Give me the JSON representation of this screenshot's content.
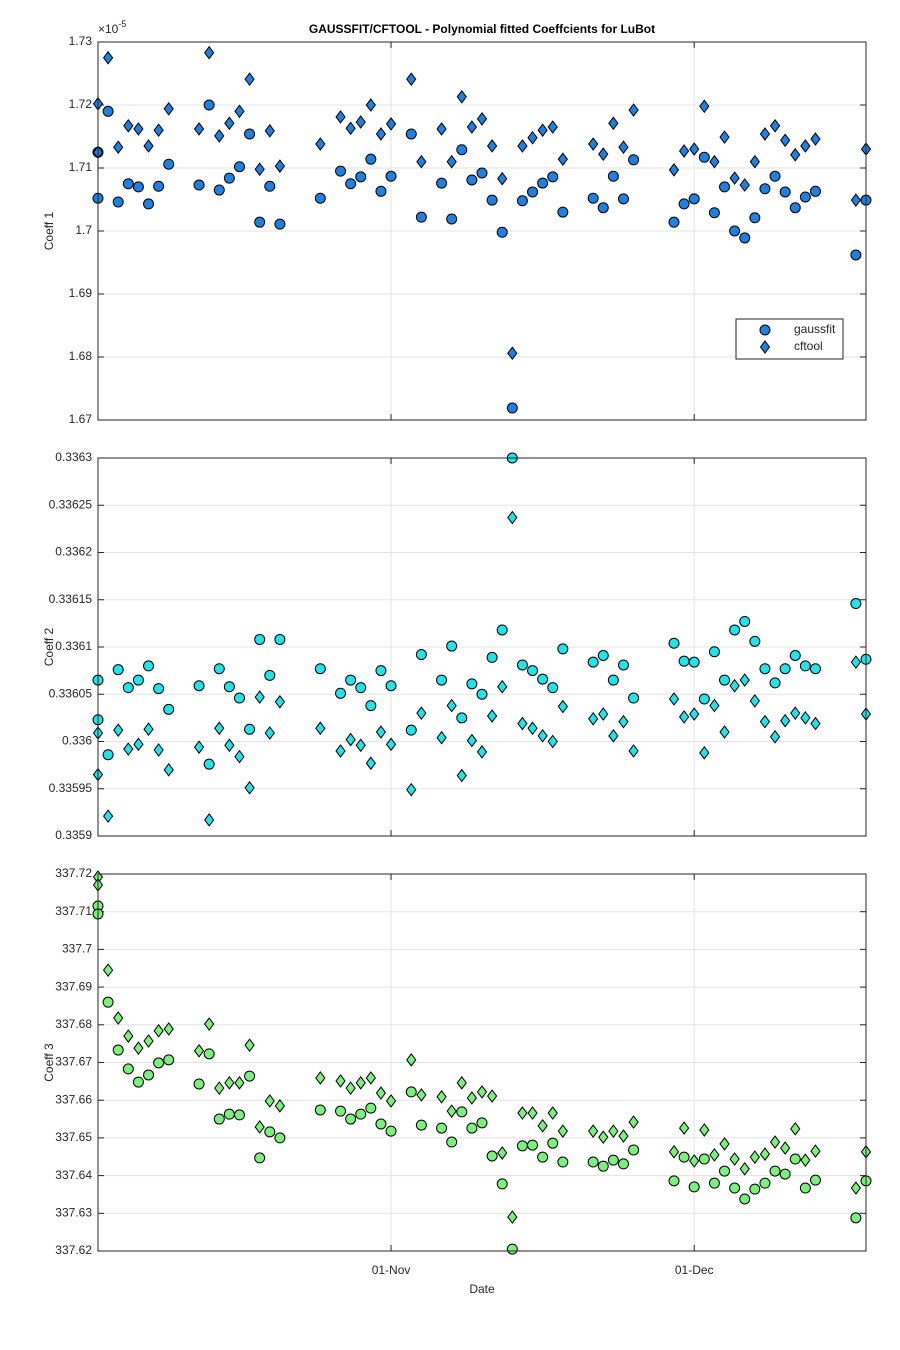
{
  "chart_data": [
    {
      "type": "scatter",
      "title": "GAUSSFIT/CFTOOL - Polynomial fitted Coeffcients for LuBot",
      "ylabel": "Coeff 1",
      "y_multiplier": {
        "base": "×10",
        "exponent": "-5"
      },
      "x": [
        "03-Oct",
        "03-Oct",
        "04-Oct",
        "05-Oct",
        "06-Oct",
        "07-Oct",
        "08-Oct",
        "09-Oct",
        "10-Oct",
        "13-Oct",
        "14-Oct",
        "15-Oct",
        "16-Oct",
        "17-Oct",
        "18-Oct",
        "19-Oct",
        "20-Oct",
        "21-Oct",
        "25-Oct",
        "27-Oct",
        "28-Oct",
        "29-Oct",
        "30-Oct",
        "31-Oct",
        "01-Nov",
        "03-Nov",
        "04-Nov",
        "06-Nov",
        "07-Nov",
        "08-Nov",
        "09-Nov",
        "10-Nov",
        "11-Nov",
        "12-Nov",
        "13-Nov",
        "14-Nov",
        "15-Nov",
        "16-Nov",
        "17-Nov",
        "18-Nov",
        "21-Nov",
        "22-Nov",
        "23-Nov",
        "24-Nov",
        "25-Nov",
        "29-Nov",
        "30-Nov",
        "01-Dec",
        "02-Dec",
        "03-Dec",
        "04-Dec",
        "05-Dec",
        "06-Dec",
        "07-Dec",
        "08-Dec",
        "09-Dec",
        "10-Dec",
        "11-Dec",
        "12-Dec",
        "13-Dec",
        "17-Dec",
        "18-Dec"
      ],
      "xlim": [
        "03-Oct",
        "18-Dec"
      ],
      "xticks": [
        "01-Nov",
        "01-Dec"
      ],
      "xticklabels": false,
      "ylim": [
        1.67,
        1.73
      ],
      "yticks": [
        1.67,
        1.68,
        1.69,
        1.7,
        1.71,
        1.72,
        1.73
      ],
      "grid": true,
      "legend": "east",
      "series": [
        {
          "name": "gaussfit",
          "marker": "o",
          "color": "#1f80e0",
          "values": [
            1.7052,
            1.7125,
            1.719,
            1.7046,
            1.7075,
            1.707,
            1.7043,
            1.7071,
            1.7106,
            1.7073,
            1.72,
            1.7065,
            1.7084,
            1.7102,
            1.7154,
            1.7014,
            1.7071,
            1.7011,
            1.7052,
            1.7095,
            1.7075,
            1.7086,
            1.7114,
            1.7063,
            1.7087,
            1.7154,
            1.7022,
            1.7076,
            1.7019,
            1.7129,
            1.7081,
            1.7092,
            1.7049,
            1.6998,
            1.6719,
            1.7048,
            1.7062,
            1.7076,
            1.7086,
            1.703,
            1.7052,
            1.7037,
            1.7087,
            1.7051,
            1.7113,
            1.7014,
            1.7043,
            1.7051,
            1.7117,
            1.7029,
            1.707,
            1.7,
            1.6989,
            1.7021,
            1.7067,
            1.7087,
            1.7062,
            1.7037,
            1.7054,
            1.7063,
            1.6962,
            1.7049
          ]
        },
        {
          "name": "cftool",
          "marker": "d",
          "color": "#1f80e0",
          "values": [
            1.7202,
            1.7125,
            1.7275,
            1.7133,
            1.7167,
            1.7162,
            1.7135,
            1.716,
            1.7194,
            1.7162,
            1.7283,
            1.7151,
            1.7171,
            1.719,
            1.7241,
            1.7098,
            1.7159,
            1.7103,
            1.7138,
            1.7181,
            1.7163,
            1.7173,
            1.72,
            1.7154,
            1.717,
            1.7241,
            1.711,
            1.7162,
            1.711,
            1.7213,
            1.7165,
            1.7178,
            1.7135,
            1.7083,
            1.6806,
            1.7135,
            1.7148,
            1.716,
            1.7165,
            1.7114,
            1.7138,
            1.7122,
            1.7171,
            1.7133,
            1.7192,
            1.7097,
            1.7127,
            1.713,
            1.7198,
            1.711,
            1.7149,
            1.7084,
            1.7073,
            1.711,
            1.7154,
            1.7167,
            1.7144,
            1.7121,
            1.7135,
            1.7146,
            1.7049,
            1.713
          ]
        }
      ]
    },
    {
      "type": "scatter",
      "ylabel": "Coeff 2",
      "x": [
        "03-Oct",
        "03-Oct",
        "04-Oct",
        "05-Oct",
        "06-Oct",
        "07-Oct",
        "08-Oct",
        "09-Oct",
        "10-Oct",
        "13-Oct",
        "14-Oct",
        "15-Oct",
        "16-Oct",
        "17-Oct",
        "18-Oct",
        "19-Oct",
        "20-Oct",
        "21-Oct",
        "25-Oct",
        "27-Oct",
        "28-Oct",
        "29-Oct",
        "30-Oct",
        "31-Oct",
        "01-Nov",
        "03-Nov",
        "04-Nov",
        "06-Nov",
        "07-Nov",
        "08-Nov",
        "09-Nov",
        "10-Nov",
        "11-Nov",
        "12-Nov",
        "13-Nov",
        "14-Nov",
        "15-Nov",
        "16-Nov",
        "17-Nov",
        "18-Nov",
        "21-Nov",
        "22-Nov",
        "23-Nov",
        "24-Nov",
        "25-Nov",
        "29-Nov",
        "30-Nov",
        "01-Dec",
        "02-Dec",
        "03-Dec",
        "04-Dec",
        "05-Dec",
        "06-Dec",
        "07-Dec",
        "08-Dec",
        "09-Dec",
        "10-Dec",
        "11-Dec",
        "12-Dec",
        "13-Dec",
        "17-Dec",
        "18-Dec"
      ],
      "xlim": [
        "03-Oct",
        "18-Dec"
      ],
      "xticks": [
        "01-Nov",
        "01-Dec"
      ],
      "xticklabels": false,
      "ylim": [
        0.3359,
        0.3363
      ],
      "yticks": [
        0.3359,
        0.33595,
        0.336,
        0.33605,
        0.3361,
        0.33615,
        0.3362,
        0.33625,
        0.3363
      ],
      "grid": true,
      "series": [
        {
          "name": "gaussfit",
          "marker": "o",
          "color": "#22e4e8",
          "values": [
            0.336065,
            0.336023,
            0.335986,
            0.336076,
            0.336057,
            0.336065,
            0.33608,
            0.336056,
            0.336034,
            0.336059,
            0.335976,
            0.336077,
            0.336058,
            0.336046,
            0.336013,
            0.336108,
            0.33607,
            0.336108,
            0.336077,
            0.336051,
            0.336065,
            0.336057,
            0.336038,
            0.336075,
            0.336059,
            0.336012,
            0.336092,
            0.336065,
            0.336101,
            0.336025,
            0.336061,
            0.33605,
            0.336089,
            0.336118,
            0.3363,
            0.336081,
            0.336075,
            0.336066,
            0.336057,
            0.336098,
            0.336084,
            0.336091,
            0.336065,
            0.336081,
            0.336046,
            0.336104,
            0.336085,
            0.336084,
            0.336045,
            0.336095,
            0.336065,
            0.336118,
            0.336127,
            0.336106,
            0.336077,
            0.336062,
            0.336077,
            0.336091,
            0.33608,
            0.336077,
            0.336146,
            0.336087
          ]
        },
        {
          "name": "cftool",
          "marker": "d",
          "color": "#22e4e8",
          "values": [
            0.336009,
            0.335965,
            0.335921,
            0.336012,
            0.335992,
            0.335997,
            0.336013,
            0.335991,
            0.33597,
            0.335994,
            0.335917,
            0.336014,
            0.335996,
            0.335984,
            0.335951,
            0.336047,
            0.336009,
            0.336042,
            0.336014,
            0.33599,
            0.336002,
            0.335996,
            0.335977,
            0.33601,
            0.335997,
            0.335949,
            0.33603,
            0.336004,
            0.336038,
            0.335964,
            0.336001,
            0.335989,
            0.336027,
            0.336058,
            0.336237,
            0.336019,
            0.336014,
            0.336006,
            0.336,
            0.336037,
            0.336024,
            0.336029,
            0.336006,
            0.336021,
            0.33599,
            0.336045,
            0.336026,
            0.336029,
            0.335988,
            0.336038,
            0.33601,
            0.336059,
            0.336065,
            0.336043,
            0.336021,
            0.336005,
            0.336022,
            0.33603,
            0.336025,
            0.336019,
            0.336084,
            0.336029
          ]
        }
      ]
    },
    {
      "type": "scatter",
      "ylabel": "Coeff 3",
      "xlabel": "Date",
      "x": [
        "03-Oct",
        "03-Oct",
        "04-Oct",
        "05-Oct",
        "06-Oct",
        "07-Oct",
        "08-Oct",
        "09-Oct",
        "10-Oct",
        "13-Oct",
        "14-Oct",
        "15-Oct",
        "16-Oct",
        "17-Oct",
        "18-Oct",
        "19-Oct",
        "20-Oct",
        "21-Oct",
        "25-Oct",
        "27-Oct",
        "28-Oct",
        "29-Oct",
        "30-Oct",
        "31-Oct",
        "01-Nov",
        "03-Nov",
        "04-Nov",
        "06-Nov",
        "07-Nov",
        "08-Nov",
        "09-Nov",
        "10-Nov",
        "11-Nov",
        "12-Nov",
        "13-Nov",
        "14-Nov",
        "15-Nov",
        "16-Nov",
        "17-Nov",
        "18-Nov",
        "21-Nov",
        "22-Nov",
        "23-Nov",
        "24-Nov",
        "25-Nov",
        "29-Nov",
        "30-Nov",
        "01-Dec",
        "02-Dec",
        "03-Dec",
        "04-Dec",
        "05-Dec",
        "06-Dec",
        "07-Dec",
        "08-Dec",
        "09-Dec",
        "10-Dec",
        "11-Dec",
        "12-Dec",
        "13-Dec",
        "17-Dec",
        "18-Dec"
      ],
      "xlim": [
        "03-Oct",
        "18-Dec"
      ],
      "xticks": [
        "01-Nov",
        "01-Dec"
      ],
      "xticklabels": true,
      "ylim": [
        337.62,
        337.72
      ],
      "yticks": [
        337.62,
        337.63,
        337.64,
        337.65,
        337.66,
        337.67,
        337.68,
        337.69,
        337.7,
        337.71,
        337.72
      ],
      "grid": true,
      "series": [
        {
          "name": "gaussfit",
          "marker": "o",
          "color": "#7cf07c",
          "values": [
            337.7115,
            337.7094,
            337.686,
            337.6733,
            337.6683,
            337.6648,
            337.6667,
            337.6699,
            337.6707,
            337.6643,
            337.6723,
            337.655,
            337.6563,
            337.6561,
            337.6664,
            337.6447,
            337.6516,
            337.65,
            337.6574,
            337.6571,
            337.655,
            337.6563,
            337.6579,
            337.6537,
            337.6518,
            337.6622,
            337.6534,
            337.6526,
            337.6489,
            337.6569,
            337.6526,
            337.654,
            337.6452,
            337.6378,
            337.6205,
            337.6479,
            337.6481,
            337.6449,
            337.6486,
            337.6436,
            337.6436,
            337.6425,
            337.6441,
            337.6431,
            337.6468,
            337.6386,
            337.6449,
            337.637,
            337.6444,
            337.638,
            337.6412,
            337.6367,
            337.6338,
            337.6364,
            337.638,
            337.6412,
            337.6404,
            337.6444,
            337.6367,
            337.6388,
            337.6288,
            337.6386
          ]
        },
        {
          "name": "cftool",
          "marker": "d",
          "color": "#7cf07c",
          "values": [
            337.7192,
            337.7171,
            337.6945,
            337.6818,
            337.677,
            337.6738,
            337.6757,
            337.6784,
            337.6789,
            337.6731,
            337.6802,
            337.6632,
            337.6646,
            337.6646,
            337.6746,
            337.6529,
            337.6598,
            337.6585,
            337.6659,
            337.6651,
            337.6632,
            337.6646,
            337.6659,
            337.6619,
            337.6598,
            337.6707,
            337.6614,
            337.6609,
            337.6571,
            337.6646,
            337.6606,
            337.6622,
            337.6611,
            337.646,
            337.629,
            337.6566,
            337.6566,
            337.6532,
            337.6566,
            337.6518,
            337.6518,
            337.6502,
            337.6518,
            337.6505,
            337.6542,
            337.6463,
            337.6526,
            337.6439,
            337.6521,
            337.6455,
            337.6484,
            337.6444,
            337.6418,
            337.6449,
            337.6457,
            337.6489,
            337.6473,
            337.6524,
            337.6441,
            337.6465,
            337.6367,
            337.6463
          ]
        }
      ]
    }
  ]
}
